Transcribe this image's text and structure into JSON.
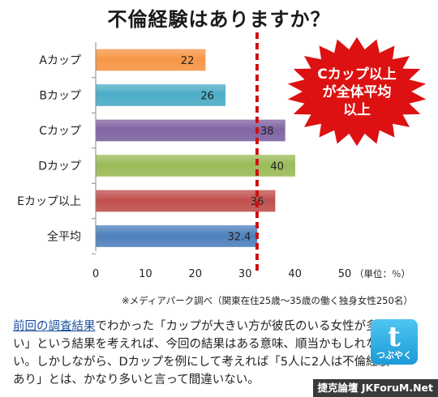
{
  "chart_data": {
    "type": "bar",
    "orientation": "horizontal",
    "title": "不倫経験はありますか？",
    "categories": [
      "Aカップ",
      "Bカップ",
      "Cカップ",
      "Dカップ",
      "Eカップ以上",
      "全平均"
    ],
    "values": [
      22,
      26,
      38,
      40,
      36,
      32.4
    ],
    "value_labels": [
      "22",
      "26",
      "38",
      "40",
      "36",
      "32.4"
    ],
    "bar_colors": [
      "#f79646",
      "#4bacc6",
      "#8064a2",
      "#9bbb59",
      "#c0504d",
      "#4f81bd"
    ],
    "xlim": [
      0,
      50
    ],
    "x_ticks": [
      "0",
      "10",
      "20",
      "30",
      "40",
      "50"
    ],
    "unit_label": "（単位：％）",
    "reference_line": {
      "value": 32.4,
      "color": "#cc1111",
      "style": "dashed"
    },
    "callout": {
      "lines": [
        "Cカップ以上",
        "が全体平均",
        "以上"
      ],
      "color": "#dd1111",
      "text_color": "#ffffff"
    },
    "grid": false,
    "legend": "none"
  },
  "source_note": "※メディアパーク調べ（関東在住25歳～35歳の働く独身女性250名）",
  "body": {
    "link_text": "前回の調査結果",
    "text": "でわかった「カップが大きい方が彼氏のいる女性が多い」という結果を考えれば、今回の結果はある意味、順当かもしれない。しかしながら、Dカップを例にして考えれば「5人に2人は不倫経験あり」とは、かなり多いと言って間違いない。"
  },
  "twitter_badge": {
    "glyph": "t",
    "label": "つぶやく",
    "color": "#2aa9e0"
  },
  "watermark": "捷克論壇 JKForuM.Net"
}
